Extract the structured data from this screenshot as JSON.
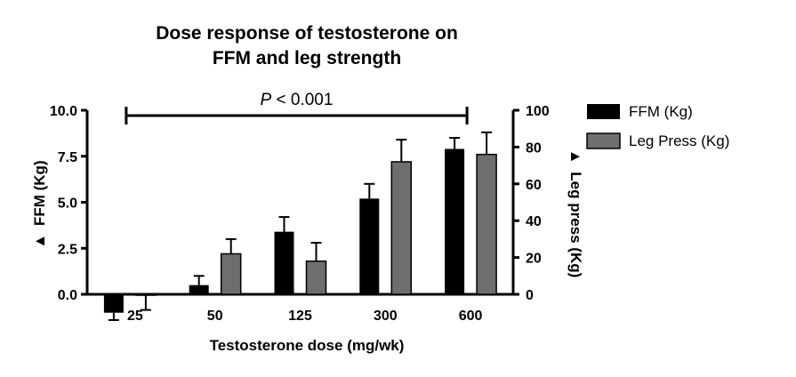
{
  "chart_data": {
    "type": "bar",
    "title_line1": "Dose response of testosterone on",
    "title_line2": "FFM and leg strength",
    "xlabel": "Testosterone dose (mg/wk)",
    "ylabel_left_symbol": "▲",
    "ylabel_left": "FFM (Kg)",
    "ylabel_right_symbol": "▲",
    "ylabel_right": "Leg press (Kg)",
    "categories": [
      "25",
      "50",
      "125",
      "300",
      "600"
    ],
    "ylim_left": [
      0,
      10
    ],
    "yticks_left": [
      "0.0",
      "2.5",
      "5.0",
      "7.5",
      "10.0"
    ],
    "ylim_right": [
      0,
      100
    ],
    "yticks_right": [
      "0",
      "20",
      "40",
      "60",
      "80",
      "100"
    ],
    "series": [
      {
        "name": "FFM (Kg)",
        "axis": "left",
        "color": "#000000",
        "values": [
          -1.0,
          0.5,
          3.4,
          5.2,
          7.9
        ],
        "errors": [
          0.4,
          0.5,
          0.8,
          0.8,
          0.6
        ]
      },
      {
        "name": "Leg Press (Kg)",
        "axis": "right",
        "color": "#6e6e6e",
        "values": [
          -0.5,
          22,
          18,
          72,
          76
        ],
        "errors": [
          8,
          8,
          10,
          12,
          12
        ]
      }
    ],
    "significance": {
      "label_italic": "P",
      "label_rest": " < 0.001",
      "from_category": "25",
      "to_category": "600"
    },
    "legend_position": "right",
    "grid": false
  }
}
